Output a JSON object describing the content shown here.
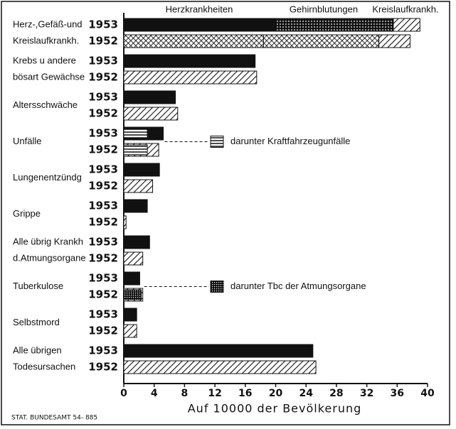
{
  "chart_data": {
    "type": "bar",
    "orientation": "horizontal",
    "categories": [
      [
        "Herz-,Gefäß-und",
        "Kreislaufkrankh."
      ],
      [
        "Krebs u andere",
        "bösart Gewächse"
      ],
      [
        "Altersschwäche"
      ],
      [
        "Unfälle"
      ],
      [
        "Lungenentzündg"
      ],
      [
        "Grippe"
      ],
      [
        "Alle übrig Krankh",
        "d.Atmungsorgane"
      ],
      [
        "Tuberkulose"
      ],
      [
        "Selbstmord"
      ],
      [
        "Alle übrigen",
        "Todesursachen"
      ]
    ],
    "series": [
      {
        "name": "1953",
        "color": "#111111",
        "values": [
          null,
          17.3,
          6.8,
          5.2,
          4.7,
          3.1,
          3.4,
          2.1,
          1.7,
          24.9
        ],
        "subset": [
          null,
          null,
          null,
          3.1,
          null,
          null,
          null,
          null,
          null,
          null
        ]
      },
      {
        "name": "1952",
        "color": "#111111",
        "values": [
          null,
          17.5,
          7.1,
          4.6,
          3.8,
          0.3,
          2.5,
          2.5,
          1.7,
          25.3
        ],
        "subset": [
          null,
          null,
          null,
          3.1,
          null,
          null,
          null,
          2.3,
          null,
          null
        ]
      }
    ],
    "stacked": [
      {
        "name": "Herzkrankheiten",
        "values": [
          20,
          18.4
        ]
      },
      {
        "name": "Gehirnblutungen",
        "values": [
          15.5,
          15.2
        ]
      },
      {
        "name": "Kreislaufkrankh.",
        "values": [
          3.5,
          4.1
        ]
      }
    ],
    "notes": [
      "darunter Kraftfahrzeugunfälle",
      "darunter Tbc der Atmungsorgane"
    ],
    "xlim": [
      0,
      40
    ],
    "xticks": [
      0,
      4,
      8,
      12,
      16,
      20,
      24,
      28,
      32,
      36,
      40
    ],
    "xlabel": "Auf 10000 der Bevölkerung",
    "source": "STAT. BUNDESAMT 54- 885"
  }
}
